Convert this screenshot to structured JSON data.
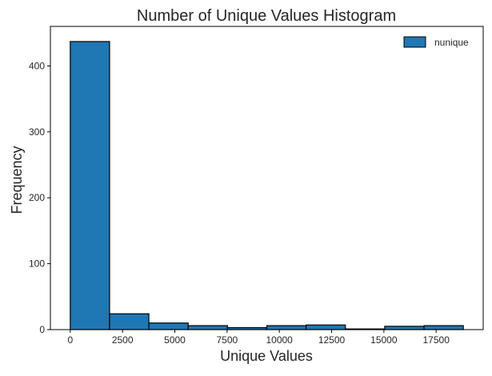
{
  "chart_data": {
    "type": "bar",
    "title": "Number of Unique Values Histogram",
    "xlabel": "Unique Values",
    "ylabel": "Frequency",
    "legend": {
      "labels": [
        "nunique"
      ],
      "placement": "top-right"
    },
    "grid": false,
    "bar_color": "#1f77b4",
    "edge_color": "#000000",
    "bin_edges": [
      0,
      1880,
      3760,
      5640,
      7520,
      9400,
      11280,
      13160,
      15040,
      16920,
      18800
    ],
    "series": [
      {
        "name": "nunique",
        "values": [
          437,
          24,
          10,
          6,
          3,
          6,
          7,
          1,
          5,
          6
        ]
      }
    ],
    "xlim": [
      -950,
      19750
    ],
    "ylim": [
      0,
      460
    ],
    "xticks": [
      0,
      2500,
      5000,
      7500,
      10000,
      12500,
      15000,
      17500
    ],
    "xtick_labels": [
      "0",
      "2500",
      "5000",
      "7500",
      "10000",
      "12500",
      "15000",
      "17500"
    ],
    "yticks": [
      0,
      100,
      200,
      300,
      400
    ],
    "ytick_labels": [
      "0",
      "100",
      "200",
      "300",
      "400"
    ]
  }
}
